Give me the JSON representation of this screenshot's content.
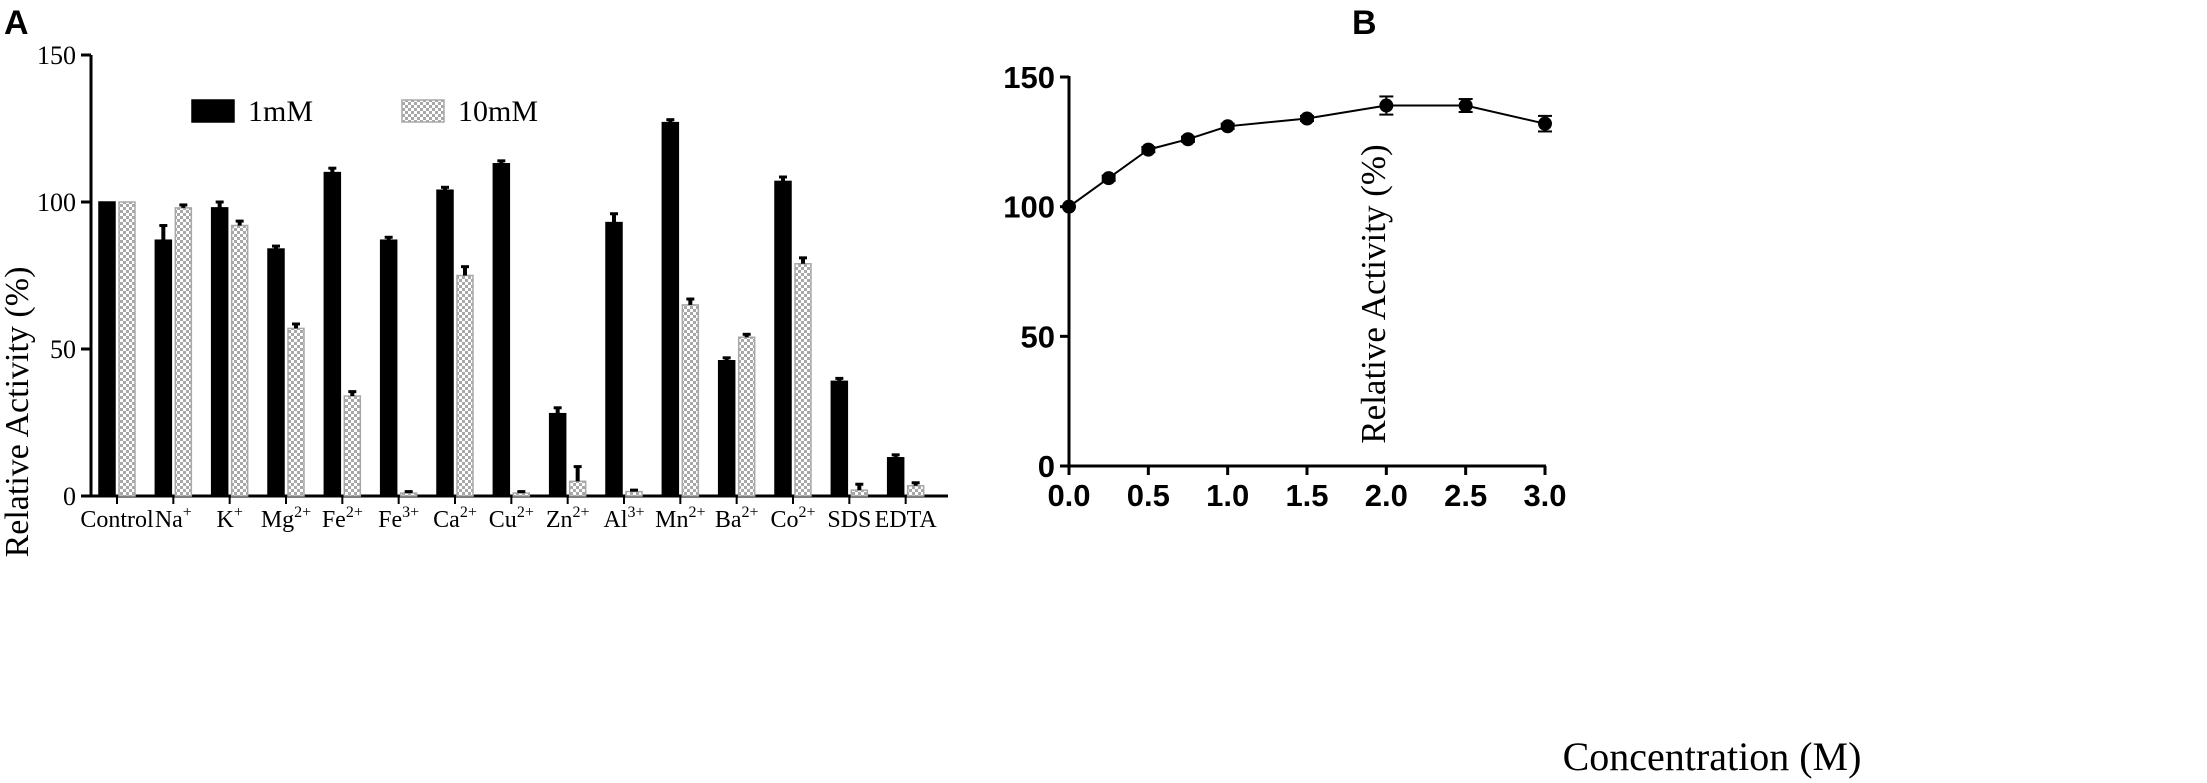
{
  "panels": {
    "a_letter": "A",
    "b_letter": "B"
  },
  "chart_data": [
    {
      "type": "bar",
      "panel": "A",
      "ylabel": "Relative Activity (%)",
      "xlabel": "",
      "ylim": [
        0,
        150
      ],
      "yticks": [
        0,
        50,
        100,
        150
      ],
      "legend_position": "top-center",
      "categories": [
        {
          "base": "Control",
          "sup": ""
        },
        {
          "base": "Na",
          "sup": "+"
        },
        {
          "base": "K",
          "sup": "+"
        },
        {
          "base": "Mg",
          "sup": "2+"
        },
        {
          "base": "Fe",
          "sup": "2+"
        },
        {
          "base": "Fe",
          "sup": "3+"
        },
        {
          "base": "Ca",
          "sup": "2+"
        },
        {
          "base": "Cu",
          "sup": "2+"
        },
        {
          "base": "Zn",
          "sup": "2+"
        },
        {
          "base": "Al",
          "sup": "3+"
        },
        {
          "base": "Mn",
          "sup": "2+"
        },
        {
          "base": "Ba",
          "sup": "2+"
        },
        {
          "base": "Co",
          "sup": "2+"
        },
        {
          "base": "SDS",
          "sup": ""
        },
        {
          "base": "EDTA",
          "sup": ""
        }
      ],
      "series": [
        {
          "name": "1mM",
          "color": "#000000",
          "values": [
            100,
            87,
            98,
            84,
            110,
            87,
            104,
            113,
            28,
            93,
            127,
            46,
            107,
            39,
            13
          ],
          "errors": [
            0,
            5,
            2,
            1,
            1.5,
            1,
            1,
            1,
            2,
            3,
            1,
            1,
            1.5,
            1,
            1
          ]
        },
        {
          "name": "10mM",
          "color": "#a8a8a8",
          "pattern": "checkered",
          "values": [
            100,
            98,
            92,
            57,
            34,
            1,
            75,
            1,
            5,
            1.5,
            65,
            54,
            79,
            2,
            3.5
          ],
          "errors": [
            0,
            1,
            1.5,
            1.5,
            1.5,
            0.5,
            3,
            0.5,
            5,
            0.5,
            2,
            1,
            2,
            2,
            1
          ]
        }
      ]
    },
    {
      "type": "line",
      "panel": "B",
      "xlabel": "Concentration (M)",
      "ylabel": "Relative Activity (%)",
      "xlim": [
        0,
        3
      ],
      "ylim": [
        0,
        150
      ],
      "xticks": [
        "0.0",
        "0.5",
        "1.0",
        "1.5",
        "2.0",
        "2.5",
        "3.0"
      ],
      "yticks": [
        0,
        50,
        100,
        150
      ],
      "series": [
        {
          "x": [
            0.0,
            0.25,
            0.5,
            0.75,
            1.0,
            1.5,
            2.0,
            2.5,
            3.0
          ],
          "y": [
            100,
            111,
            122,
            126,
            131,
            134,
            139,
            139,
            132
          ],
          "errors": [
            0,
            1,
            1,
            1,
            1,
            1,
            3.5,
            2.5,
            3
          ]
        }
      ]
    }
  ]
}
